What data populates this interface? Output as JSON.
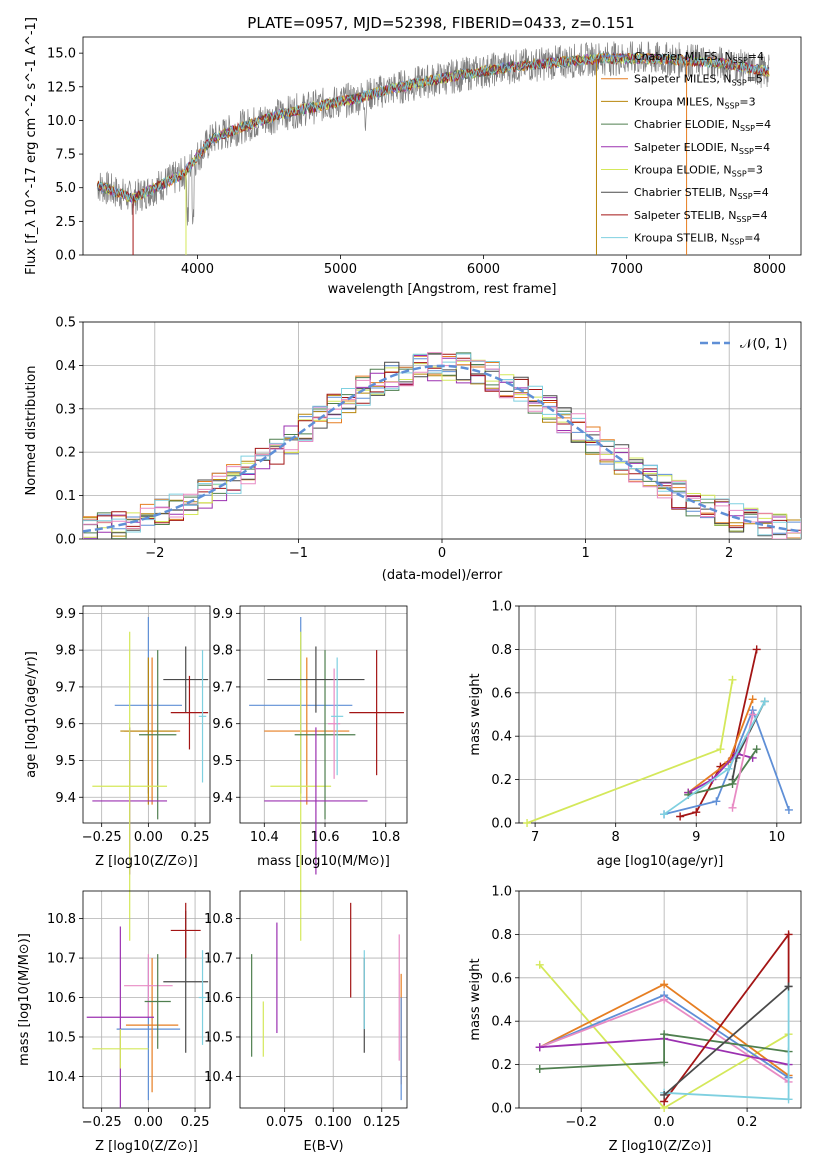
{
  "colors": {
    "chabrier_miles": "#5f8fd6",
    "salpeter_miles": "#e67e22",
    "kroupa_miles": "#b8860b",
    "chabrier_elodie": "#4f7f4f",
    "salpeter_elodie": "#9b30b0",
    "kroupa_elodie": "#d4e85a",
    "chabrier_stelib": "#4a4a4a",
    "salpeter_stelib": "#a31515",
    "kroupa_stelib": "#7fd0e0",
    "pink": "#e88bc4",
    "data": "#808080",
    "normal": "#5f8fd6"
  },
  "chart_data": [
    {
      "id": "spectrum",
      "type": "line",
      "title": "PLATE=0957, MJD=52398, FIBERID=0433, z=0.151",
      "xlabel": "wavelength [Angstrom, rest frame]",
      "ylabel": "Flux [f_λ 10^-17 erg cm^-2 s^-1 A^-1]",
      "xlim": [
        3200,
        8220
      ],
      "ylim": [
        0,
        16.2
      ],
      "xticks": [
        4000,
        5000,
        6000,
        7000,
        8000
      ],
      "yticks": [
        0.0,
        2.5,
        5.0,
        7.5,
        10.0,
        12.5,
        15.0
      ],
      "legend_position": "top-right",
      "continuum": {
        "x": [
          3300,
          3550,
          3900,
          4100,
          4300,
          4600,
          4900,
          5100,
          5300,
          5600,
          5900,
          6200,
          6500,
          6800,
          7100,
          7400,
          7700,
          7900,
          8000
        ],
        "y": [
          5.2,
          4.2,
          6.0,
          8.6,
          9.5,
          10.5,
          11.2,
          11.6,
          12.2,
          12.9,
          13.5,
          14.0,
          14.3,
          14.6,
          14.6,
          14.5,
          14.2,
          13.8,
          13.6
        ]
      },
      "series": [
        {
          "key": "chabrier_miles",
          "label": "Chabrier MILES, N",
          "sub": "SSP",
          "value": "=4"
        },
        {
          "key": "salpeter_miles",
          "label": "Salpeter MILES, N",
          "sub": "SSP",
          "value": "=5"
        },
        {
          "key": "kroupa_miles",
          "label": "Kroupa MILES, N",
          "sub": "SSP",
          "value": "=3"
        },
        {
          "key": "chabrier_elodie",
          "label": "Chabrier ELODIE, N",
          "sub": "SSP",
          "value": "=4"
        },
        {
          "key": "salpeter_elodie",
          "label": "Salpeter ELODIE, N",
          "sub": "SSP",
          "value": "=4"
        },
        {
          "key": "kroupa_elodie",
          "label": "Kroupa ELODIE, N",
          "sub": "SSP",
          "value": "=3"
        },
        {
          "key": "chabrier_stelib",
          "label": "Chabrier STELIB, N",
          "sub": "SSP",
          "value": "=4"
        },
        {
          "key": "salpeter_stelib",
          "label": "Salpeter STELIB, N",
          "sub": "SSP",
          "value": "=4"
        },
        {
          "key": "kroupa_stelib",
          "label": "Kroupa STELIB, N",
          "sub": "SSP",
          "value": "=4"
        }
      ]
    },
    {
      "id": "residuals",
      "type": "histogram",
      "xlabel": "(data-model)/error",
      "ylabel": "Normed distribution",
      "xlim": [
        -2.5,
        2.5
      ],
      "ylim": [
        0,
        0.5
      ],
      "xticks": [
        -2,
        -1,
        0,
        1,
        2
      ],
      "yticks": [
        0.0,
        0.1,
        0.2,
        0.3,
        0.4,
        0.5
      ],
      "legend": "𝒩(0, 1)",
      "legend_position": "top-right"
    },
    {
      "id": "age_vs_Z",
      "type": "scatter",
      "xlabel": "Z [log10(Z/Z⊙)]",
      "ylabel": "age  [log10(age/yr)]",
      "xlim": [
        -0.35,
        0.33
      ],
      "ylim": [
        9.33,
        9.92
      ],
      "xticks": [
        -0.25,
        0.0,
        0.25
      ],
      "yticks": [
        9.4,
        9.5,
        9.6,
        9.7,
        9.8,
        9.9
      ],
      "points": [
        {
          "key": "chabrier_miles",
          "x": 0.0,
          "xerr": 0.18,
          "y": 9.65,
          "yerr": 0.24
        },
        {
          "key": "salpeter_miles",
          "x": 0.02,
          "xerr": 0.15,
          "y": 9.58,
          "yerr": 0.2
        },
        {
          "key": "kroupa_miles",
          "x": 0.0,
          "xerr": 0.15,
          "y": 9.58,
          "yerr": 0.2
        },
        {
          "key": "chabrier_elodie",
          "x": 0.05,
          "xerr": 0.1,
          "y": 9.57,
          "yerr": 0.23
        },
        {
          "key": "salpeter_elodie",
          "x": -0.1,
          "xerr": 0.2,
          "y": 9.39,
          "yerr": 0.2
        },
        {
          "key": "kroupa_elodie",
          "x": -0.1,
          "xerr": 0.2,
          "y": 9.43,
          "yerr": 0.42
        },
        {
          "key": "chabrier_stelib",
          "x": 0.2,
          "xerr": 0.12,
          "y": 9.72,
          "yerr": 0.09
        },
        {
          "key": "salpeter_stelib",
          "x": 0.22,
          "xerr": 0.1,
          "y": 9.63,
          "yerr": 0.1
        },
        {
          "key": "kroupa_stelib",
          "x": 0.29,
          "xerr": 0.02,
          "y": 9.62,
          "yerr": 0.18
        }
      ]
    },
    {
      "id": "age_vs_mass",
      "type": "scatter",
      "xlabel": "mass [log10(M/M⊙)]",
      "ylabel": "",
      "xlim": [
        10.32,
        10.87
      ],
      "ylim": [
        9.33,
        9.92
      ],
      "xticks": [
        10.4,
        10.6,
        10.8
      ],
      "yticks": [
        9.4,
        9.5,
        9.6,
        9.7,
        9.8,
        9.9
      ],
      "points": [
        {
          "key": "chabrier_miles",
          "x": 10.52,
          "xerr": 0.17,
          "y": 9.65,
          "yerr": 0.24
        },
        {
          "key": "salpeter_miles",
          "x": 10.54,
          "xerr": 0.14,
          "y": 9.58,
          "yerr": 0.2
        },
        {
          "key": "kroupa_elodie",
          "x": 10.52,
          "xerr": 0.1,
          "y": 9.43,
          "yerr": 0.42
        },
        {
          "key": "chabrier_elodie",
          "x": 10.6,
          "xerr": 0.1,
          "y": 9.57,
          "yerr": 0.23
        },
        {
          "key": "salpeter_elodie",
          "x": 10.57,
          "xerr": 0.17,
          "y": 9.39,
          "yerr": 0.2
        },
        {
          "key": "chabrier_stelib",
          "x": 10.57,
          "xerr": 0.16,
          "y": 9.72,
          "yerr": 0.09
        },
        {
          "key": "salpeter_stelib",
          "x": 10.77,
          "xerr": 0.09,
          "y": 9.63,
          "yerr": 0.17
        },
        {
          "key": "pink",
          "x": 10.63,
          "xerr": 0.02,
          "y": 9.6,
          "yerr": 0.15
        },
        {
          "key": "kroupa_stelib",
          "x": 10.64,
          "xerr": 0.02,
          "y": 9.62,
          "yerr": 0.16
        }
      ]
    },
    {
      "id": "weight_vs_age",
      "type": "line",
      "xlabel": "age  [log10(age/yr)]",
      "ylabel": "mass weight",
      "xlim": [
        6.8,
        10.3
      ],
      "ylim": [
        0,
        1.0
      ],
      "xticks": [
        7,
        8,
        9,
        10
      ],
      "yticks": [
        0.0,
        0.2,
        0.4,
        0.6,
        0.8,
        1.0
      ],
      "series": [
        {
          "key": "kroupa_elodie",
          "x": [
            6.9,
            9.3,
            9.45
          ],
          "y": [
            0.0,
            0.34,
            0.66
          ]
        },
        {
          "key": "salpeter_stelib",
          "x": 8.8,
          "x_all": [
            8.8,
            9.0,
            9.3,
            9.45,
            9.75
          ],
          "y_all": [
            0.03,
            0.05,
            0.26,
            0.3,
            0.8
          ]
        },
        {
          "key": "chabrier_miles",
          "x_all": [
            8.6,
            9.25,
            9.7,
            10.15
          ],
          "y_all": [
            0.04,
            0.1,
            0.52,
            0.06
          ]
        },
        {
          "key": "chabrier_stelib",
          "x_all": [
            9.45,
            9.5,
            9.85
          ],
          "y_all": [
            0.2,
            0.3,
            0.56
          ]
        },
        {
          "key": "salpeter_miles",
          "x_all": [
            8.9,
            9.4,
            9.7
          ],
          "y_all": [
            0.14,
            0.28,
            0.57
          ]
        },
        {
          "key": "salpeter_elodie",
          "x_all": [
            8.9,
            9.2,
            9.5,
            9.7
          ],
          "y_all": [
            0.14,
            0.2,
            0.32,
            0.3
          ]
        },
        {
          "key": "chabrier_elodie",
          "x_all": [
            8.9,
            9.45,
            9.75
          ],
          "y_all": [
            0.13,
            0.18,
            0.34
          ]
        },
        {
          "key": "pink",
          "x_all": [
            9.45,
            9.7
          ],
          "y_all": [
            0.07,
            0.5
          ]
        },
        {
          "key": "kroupa_stelib",
          "x_all": [
            8.6,
            9.4,
            9.85
          ],
          "y_all": [
            0.04,
            0.25,
            0.56
          ]
        }
      ]
    },
    {
      "id": "mass_vs_Z",
      "type": "scatter",
      "xlabel": "Z [log10(Z/Z⊙)]",
      "ylabel": "mass [log10(M/M⊙)]",
      "xlim": [
        -0.35,
        0.33
      ],
      "ylim": [
        10.32,
        10.87
      ],
      "xticks": [
        -0.25,
        0.0,
        0.25
      ],
      "yticks": [
        10.4,
        10.5,
        10.6,
        10.7,
        10.8
      ],
      "points": [
        {
          "key": "chabrier_miles",
          "x": 0.0,
          "xerr": 0.17,
          "y": 10.52,
          "yerr": 0.18
        },
        {
          "key": "salpeter_miles",
          "x": 0.02,
          "xerr": 0.14,
          "y": 10.53,
          "yerr": 0.17
        },
        {
          "key": "pink",
          "x": 0.0,
          "xerr": 0.13,
          "y": 10.63,
          "yerr": 0.08
        },
        {
          "key": "chabrier_elodie",
          "x": 0.05,
          "xerr": 0.07,
          "y": 10.59,
          "yerr": 0.12
        },
        {
          "key": "salpeter_elodie",
          "x": -0.15,
          "xerr": 0.18,
          "y": 10.55,
          "yerr": 0.23
        },
        {
          "key": "kroupa_elodie",
          "x": -0.15,
          "xerr": 0.15,
          "y": 10.47,
          "yerr": 0.05
        },
        {
          "key": "chabrier_stelib",
          "x": 0.2,
          "xerr": 0.12,
          "y": 10.64,
          "yerr": 0.18
        },
        {
          "key": "salpeter_stelib",
          "x": 0.2,
          "xerr": 0.08,
          "y": 10.77,
          "yerr": 0.07
        },
        {
          "key": "kroupa_stelib",
          "x": 0.29,
          "xerr": 0.02,
          "y": 10.6,
          "yerr": 0.12
        }
      ]
    },
    {
      "id": "mass_vs_ebv",
      "type": "scatter",
      "xlabel": "E(B-V)",
      "ylabel": "",
      "xlim": [
        0.052,
        0.138
      ],
      "ylim": [
        10.32,
        10.87
      ],
      "xticks": [
        0.075,
        0.1,
        0.125
      ],
      "yticks": [
        10.4,
        10.5,
        10.6,
        10.7,
        10.8
      ],
      "points": [
        {
          "key": "chabrier_elodie",
          "x": 0.058,
          "y": 10.58,
          "yerr": 0.13
        },
        {
          "key": "kroupa_elodie",
          "x": 0.064,
          "y": 10.52,
          "yerr": 0.07
        },
        {
          "key": "salpeter_elodie",
          "x": 0.071,
          "y": 10.65,
          "yerr": 0.14
        },
        {
          "key": "salpeter_stelib",
          "x": 0.109,
          "y": 10.72,
          "yerr": 0.12
        },
        {
          "key": "chabrier_stelib",
          "x": 0.116,
          "y": 10.58,
          "yerr": 0.12
        },
        {
          "key": "kroupa_stelib",
          "x": 0.116,
          "y": 10.62,
          "yerr": 0.1
        },
        {
          "key": "pink",
          "x": 0.134,
          "y": 10.6,
          "yerr": 0.16
        },
        {
          "key": "salpeter_miles",
          "x": 0.135,
          "y": 10.52,
          "yerr": 0.14
        },
        {
          "key": "chabrier_miles",
          "x": 0.135,
          "y": 10.47,
          "yerr": 0.13
        }
      ]
    },
    {
      "id": "weight_vs_Z",
      "type": "line",
      "xlabel": "Z [log10(Z/Z⊙)]",
      "ylabel": "mass weight",
      "xlim": [
        -0.35,
        0.33
      ],
      "ylim": [
        0,
        1.0
      ],
      "xticks": [
        -0.2,
        0.0,
        0.2
      ],
      "yticks": [
        0.0,
        0.2,
        0.4,
        0.6,
        0.8,
        1.0
      ],
      "series": [
        {
          "key": "kroupa_elodie",
          "x_all": [
            -0.3,
            0.0,
            0.3
          ],
          "y_all": [
            0.66,
            0.0,
            0.34
          ]
        },
        {
          "key": "salpeter_miles",
          "x_all": [
            -0.3,
            0.0,
            0.3
          ],
          "y_all": [
            0.28,
            0.57,
            0.15
          ]
        },
        {
          "key": "chabrier_miles",
          "x_all": [
            -0.3,
            0.0,
            0.3
          ],
          "y_all": [
            0.28,
            0.52,
            0.14
          ]
        },
        {
          "key": "pink",
          "x_all": [
            -0.3,
            0.0,
            0.3
          ],
          "y_all": [
            0.28,
            0.5,
            0.12
          ]
        },
        {
          "key": "salpeter_elodie",
          "x_all": [
            -0.3,
            0.0,
            0.3
          ],
          "y_all": [
            0.28,
            0.32,
            0.2
          ]
        },
        {
          "key": "chabrier_elodie",
          "x_all": [
            -0.3,
            0.0,
            0.0,
            0.3
          ],
          "y_all": [
            0.18,
            0.21,
            0.34,
            0.26
          ]
        },
        {
          "key": "salpeter_stelib",
          "x_all": [
            0.0,
            0.3,
            0.3
          ],
          "y_all": [
            0.03,
            0.8,
            0.56
          ]
        },
        {
          "key": "kroupa_stelib",
          "x_all": [
            0.0,
            0.3,
            0.3
          ],
          "y_all": [
            0.07,
            0.04,
            0.56
          ]
        },
        {
          "key": "chabrier_stelib",
          "x_all": [
            0.0,
            0.3
          ],
          "y_all": [
            0.06,
            0.56
          ]
        }
      ]
    }
  ]
}
